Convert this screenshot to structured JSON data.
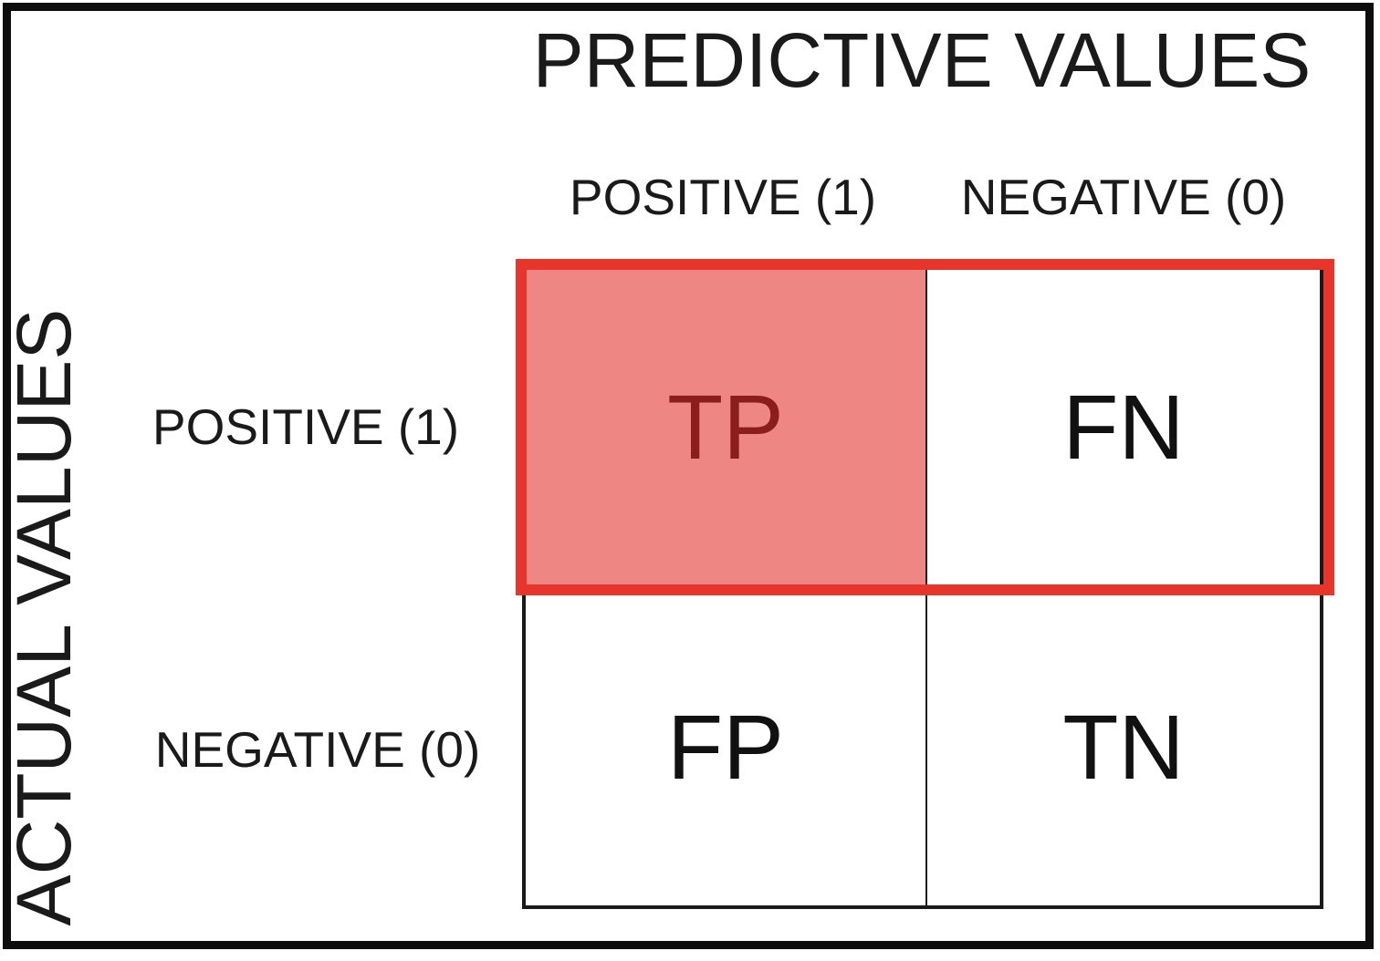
{
  "matrix": {
    "title": "PREDICTIVE VALUES",
    "col_axis": {
      "headers": [
        {
          "label": "POSITIVE (1)"
        },
        {
          "label": "NEGATIVE (0)"
        }
      ]
    },
    "row_axis": {
      "label": "ACTUAL VALUES",
      "headers": [
        {
          "label": "POSITIVE (1)"
        },
        {
          "label": "NEGATIVE (0)"
        }
      ]
    },
    "cells": [
      {
        "id": "true-positive",
        "label": "TP",
        "highlighted": true
      },
      {
        "id": "false-negative",
        "label": "FN",
        "highlighted": false
      },
      {
        "id": "false-positive",
        "label": "FP",
        "highlighted": false
      },
      {
        "id": "true-negative",
        "label": "TN",
        "highlighted": false
      }
    ],
    "colors": {
      "highlight_fill": "#EE8683",
      "highlight_border": "#E8352B",
      "highlight_text": "#8B1D1B",
      "grid_line": "#1a1a1a",
      "text": "#1a1a1a"
    }
  }
}
